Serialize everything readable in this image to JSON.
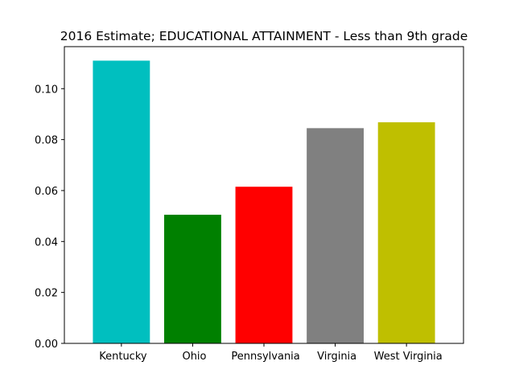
{
  "chart_data": {
    "type": "bar",
    "title": "2016 Estimate; EDUCATIONAL ATTAINMENT - Less than 9th grade",
    "xlabel": "",
    "ylabel": "",
    "categories": [
      "Kentucky",
      "Ohio",
      "Pennsylvania",
      "Virginia",
      "West Virginia"
    ],
    "category_labels": [
      " Kentucky",
      " Ohio",
      " Pennsylvania",
      " Virginia",
      " West Virginia"
    ],
    "values": [
      0.111,
      0.0505,
      0.0615,
      0.0845,
      0.0868
    ],
    "colors": [
      "#00bfbf",
      "#008000",
      "#ff0000",
      "#808080",
      "#bfbf00"
    ],
    "ylim": [
      0,
      0.1165
    ],
    "yticks": [
      0.0,
      0.02,
      0.04,
      0.06,
      0.08,
      0.1
    ],
    "ytick_labels": [
      "0.00",
      "0.02",
      "0.04",
      "0.06",
      "0.08",
      "0.10"
    ],
    "grid": false,
    "legend": "none"
  }
}
